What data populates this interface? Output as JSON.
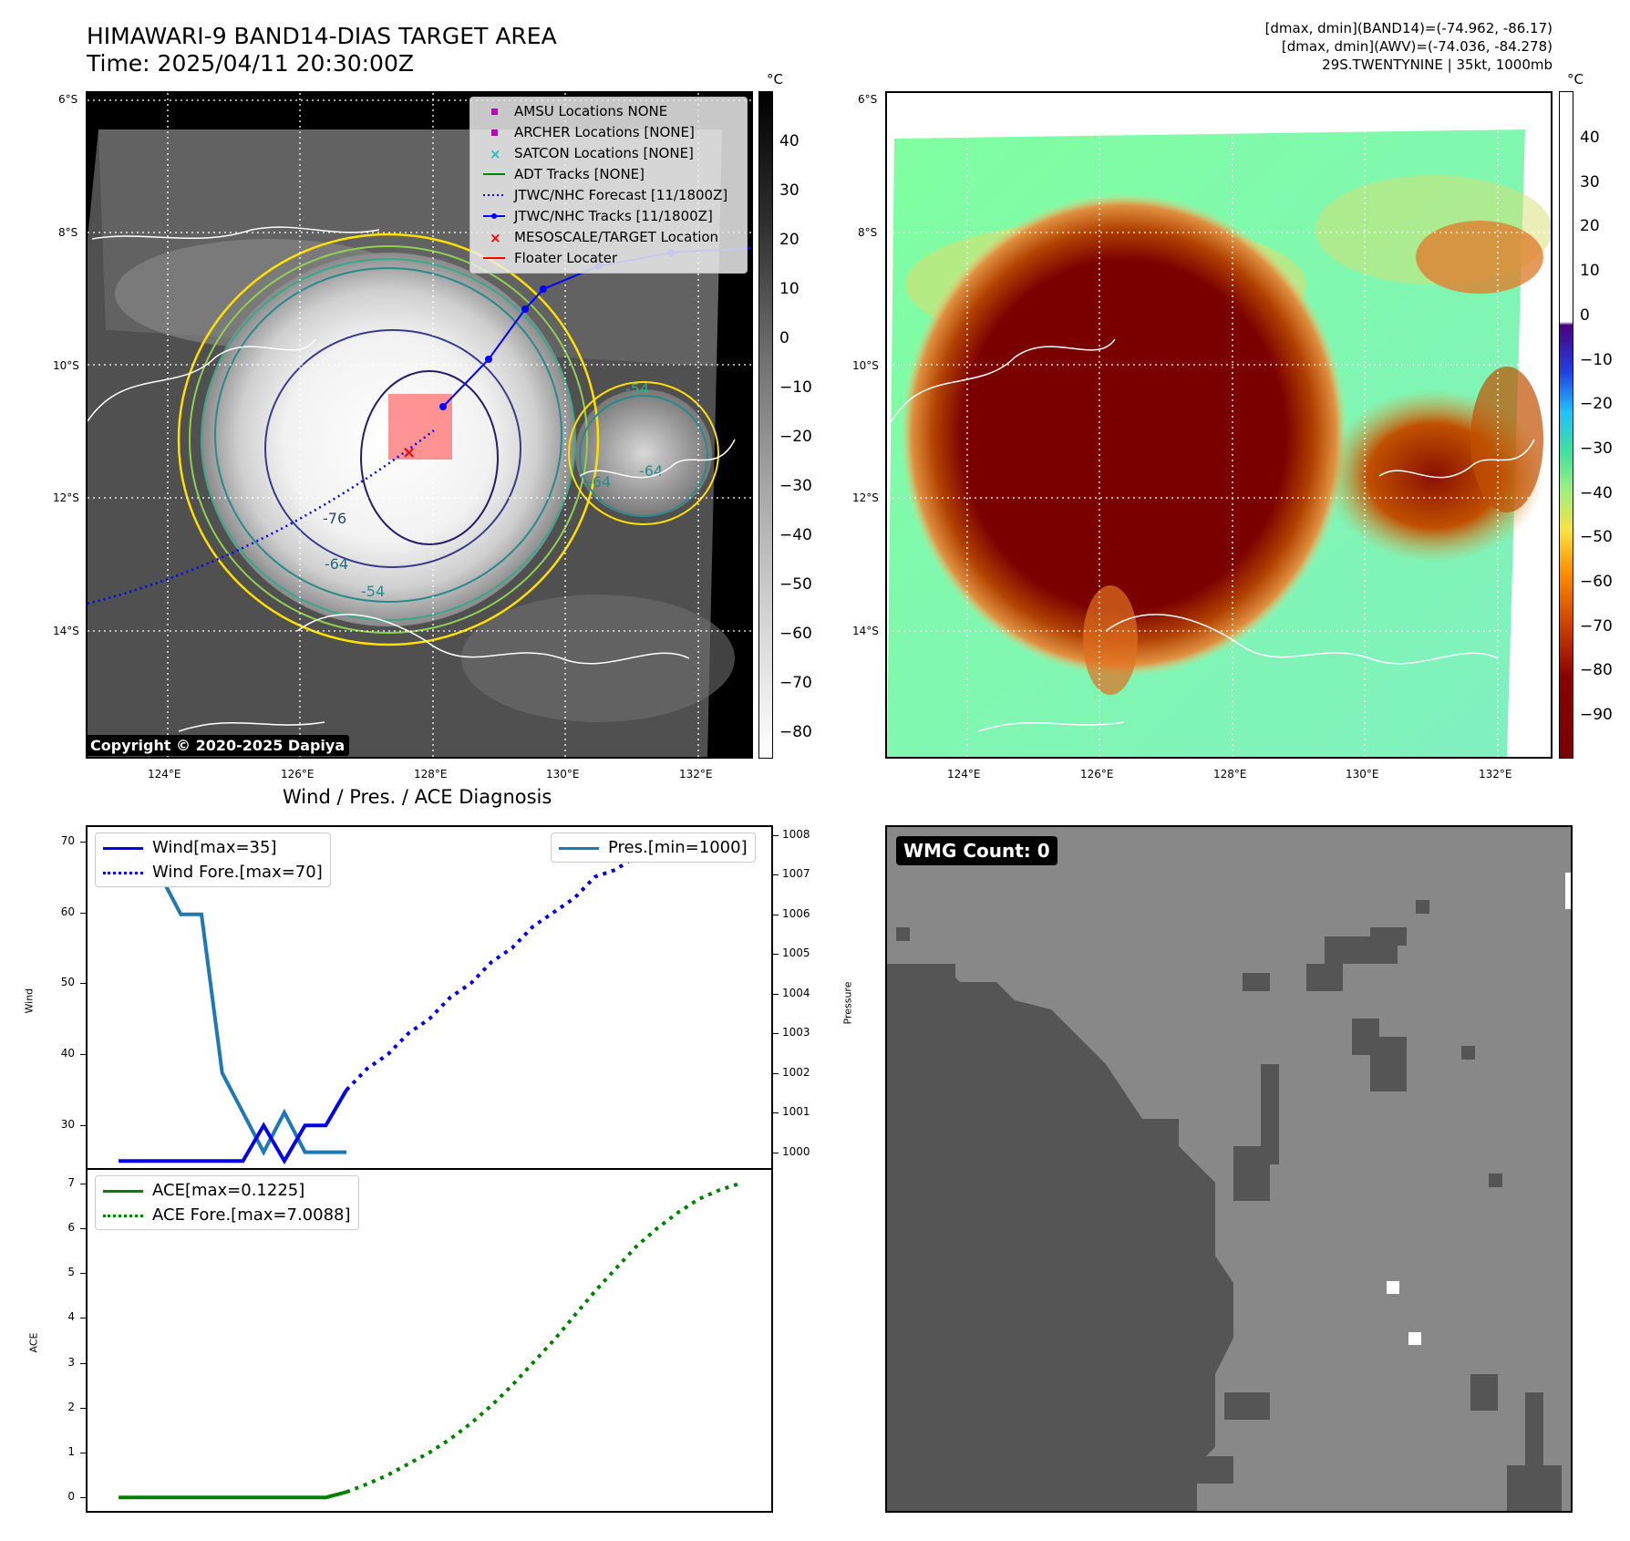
{
  "header": {
    "title_line1": "HIMAWARI-9 BAND14-DIAS TARGET AREA",
    "title_line2": "Time: 2025/04/11 20:30:00Z",
    "info_line1": "[dmax, dmin](BAND14)=(-74.962, -86.17)",
    "info_line2": "[dmax, dmin](AWV)=(-74.036, -84.278)",
    "info_line3": "29S.TWENTYNINE | 35kt, 1000mb"
  },
  "map": {
    "lat_labels": [
      "6°S",
      "8°S",
      "10°S",
      "12°S",
      "14°S"
    ],
    "lon_labels": [
      "124°E",
      "126°E",
      "128°E",
      "130°E",
      "132°E"
    ],
    "copyright": "Copyright © 2020-2025 Dapiya",
    "contour_labels": [
      "-76",
      "-64",
      "-54",
      "-64",
      "-64",
      "-54"
    ]
  },
  "legend": {
    "items": [
      {
        "label": "AMSU Locations NONE",
        "color": "#c000c0",
        "kind": "square"
      },
      {
        "label": "ARCHER Locations [NONE]",
        "color": "#c000c0",
        "kind": "square"
      },
      {
        "label": "SATCON Locations [NONE]",
        "color": "#20c0c0",
        "kind": "x"
      },
      {
        "label": "ADT Tracks [NONE]",
        "color": "#008000",
        "kind": "line"
      },
      {
        "label": "JTWC/NHC Forecast [11/1800Z]",
        "color": "#0000ff",
        "kind": "dotted"
      },
      {
        "label": "JTWC/NHC Tracks [11/1800Z]",
        "color": "#0000ff",
        "kind": "linedot"
      },
      {
        "label": "MESOSCALE/TARGET Location",
        "color": "#ff0000",
        "kind": "x"
      },
      {
        "label": "Floater Locater",
        "color": "#ff0000",
        "kind": "line"
      }
    ]
  },
  "colorbars": {
    "unit": "°C",
    "left_ticks": [
      "40",
      "30",
      "20",
      "10",
      "0",
      "−10",
      "−20",
      "−30",
      "−40",
      "−50",
      "−60",
      "−70",
      "−80"
    ],
    "right_ticks": [
      "40",
      "30",
      "20",
      "10",
      "0",
      "−10",
      "−20",
      "−30",
      "−40",
      "−50",
      "−60",
      "−70",
      "−80",
      "−90"
    ]
  },
  "diagnosis": {
    "title": "Wind / Pres. / ACE Diagnosis",
    "wind_ylabel": "Wind",
    "pres_ylabel": "Pressure",
    "ace_ylabel": "ACE",
    "wind_legend": [
      "Wind[max=35]",
      "Wind Fore.[max=70]"
    ],
    "pres_legend": [
      "Pres.[min=1000]"
    ],
    "ace_legend": [
      "ACE[max=0.1225]",
      "ACE Fore.[max=7.0088]"
    ],
    "colors": {
      "wind": "#0000ee",
      "pres": "#1f77b4",
      "ace": "#008000"
    }
  },
  "wmg": {
    "label": "WMG Count: 0"
  },
  "chart_data": [
    {
      "type": "line",
      "title": "Wind / Pres. / ACE Diagnosis",
      "ylabel": "Wind",
      "ylim": [
        24,
        72
      ],
      "y_ticks": [
        30,
        40,
        50,
        60,
        70
      ],
      "series": [
        {
          "name": "Wind[max=35]",
          "x": [
            0,
            1,
            2,
            3,
            4,
            5,
            6,
            7,
            8,
            9,
            10,
            11
          ],
          "values": [
            25,
            25,
            25,
            25,
            25,
            25,
            25,
            30,
            25,
            30,
            30,
            35
          ]
        },
        {
          "name": "Wind Fore.[max=70]",
          "x": [
            11,
            12,
            13,
            14,
            15,
            16,
            17,
            18,
            19,
            20,
            21,
            22,
            23,
            24,
            25,
            26,
            27,
            28,
            29,
            30
          ],
          "values": [
            35,
            38,
            40,
            43,
            45,
            48,
            50,
            53,
            55,
            58,
            60,
            62,
            65,
            66,
            68,
            70,
            70,
            70,
            70,
            68
          ]
        }
      ]
    },
    {
      "type": "line",
      "ylabel": "Pressure",
      "ylim": [
        999.6,
        1008.2
      ],
      "y_ticks": [
        1000,
        1001,
        1002,
        1003,
        1004,
        1005,
        1006,
        1007,
        1008
      ],
      "series": [
        {
          "name": "Pres.[min=1000]",
          "x": [
            0,
            1,
            2,
            3,
            4,
            5,
            6,
            7,
            8,
            9,
            10,
            11
          ],
          "values": [
            1008,
            1007,
            1007,
            1006,
            1006,
            1002,
            1001,
            1000,
            1001,
            1000,
            1000,
            1000
          ]
        }
      ]
    },
    {
      "type": "line",
      "ylabel": "ACE",
      "ylim": [
        -0.3,
        7.3
      ],
      "y_ticks": [
        0,
        1,
        2,
        3,
        4,
        5,
        6,
        7
      ],
      "series": [
        {
          "name": "ACE[max=0.1225]",
          "x": [
            0,
            1,
            2,
            3,
            4,
            5,
            6,
            7,
            8,
            9,
            10,
            11
          ],
          "values": [
            0,
            0,
            0,
            0,
            0,
            0,
            0,
            0,
            0,
            0,
            0,
            0.12
          ]
        },
        {
          "name": "ACE Fore.[max=7.0088]",
          "x": [
            11,
            12,
            13,
            14,
            15,
            16,
            17,
            18,
            19,
            20,
            21,
            22,
            23,
            24,
            25,
            26,
            27,
            28,
            29,
            30
          ],
          "values": [
            0.12,
            0.3,
            0.5,
            0.75,
            1.0,
            1.3,
            1.65,
            2.05,
            2.5,
            3.0,
            3.5,
            4.05,
            4.6,
            5.1,
            5.6,
            6.0,
            6.35,
            6.65,
            6.85,
            7.0
          ]
        }
      ]
    }
  ]
}
